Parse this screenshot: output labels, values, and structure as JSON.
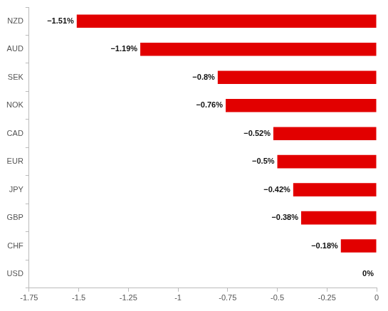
{
  "chart_data": {
    "type": "bar",
    "orientation": "horizontal",
    "categories": [
      "NZD",
      "AUD",
      "SEK",
      "NOK",
      "CAD",
      "EUR",
      "JPY",
      "GBP",
      "CHF",
      "USD"
    ],
    "values": [
      -1.51,
      -1.19,
      -0.8,
      -0.76,
      -0.52,
      -0.5,
      -0.42,
      -0.38,
      -0.18,
      0
    ],
    "value_labels": [
      "−1.51%",
      "−1.19%",
      "−0.8%",
      "−0.76%",
      "−0.52%",
      "−0.5%",
      "−0.42%",
      "−0.38%",
      "−0.18%",
      "0%"
    ],
    "color": "#e20000",
    "xlim": [
      -1.75,
      0
    ],
    "xticks": [
      -1.75,
      -1.5,
      -1.25,
      -1,
      -0.75,
      -0.5,
      -0.25,
      0
    ],
    "grid": false,
    "data_labels": true
  }
}
